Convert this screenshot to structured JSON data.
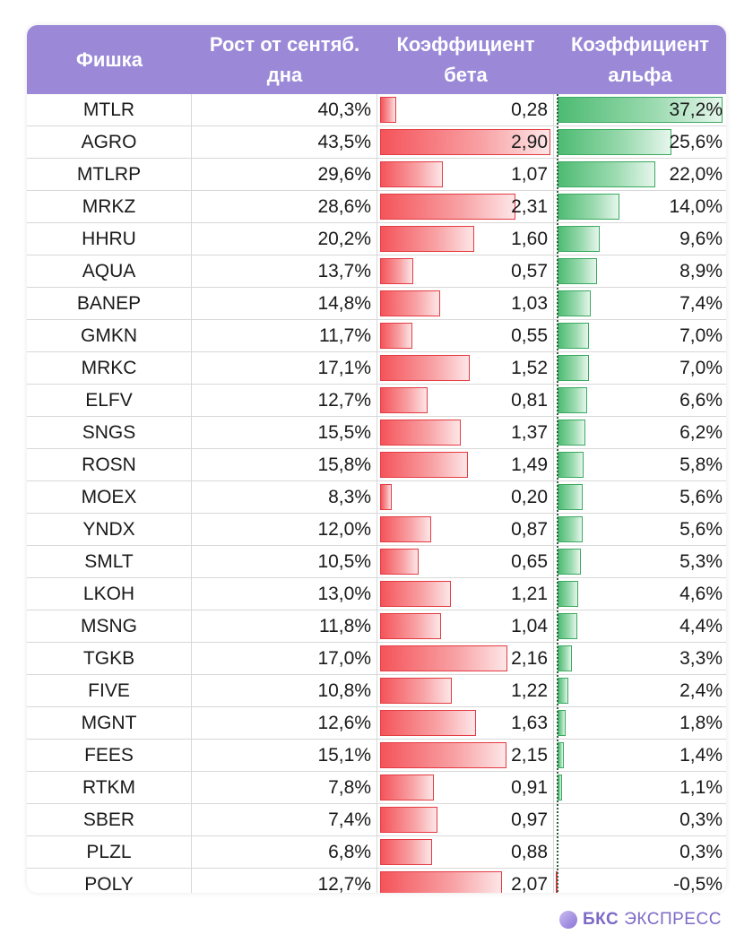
{
  "chart_data": {
    "type": "table",
    "columns": [
      "Фишка",
      "Рост от сентяб. дна",
      "Коэффициент бета",
      "Коэффициент альфа"
    ],
    "rows": [
      {
        "ticker": "MTLR",
        "growth": "40,3%",
        "beta": "0,28",
        "alpha": "37,2%",
        "beta_value": 0.28,
        "alpha_value": 37.2
      },
      {
        "ticker": "AGRO",
        "growth": "43,5%",
        "beta": "2,90",
        "alpha": "25,6%",
        "beta_value": 2.9,
        "alpha_value": 25.6
      },
      {
        "ticker": "MTLRP",
        "growth": "29,6%",
        "beta": "1,07",
        "alpha": "22,0%",
        "beta_value": 1.07,
        "alpha_value": 22.0
      },
      {
        "ticker": "MRKZ",
        "growth": "28,6%",
        "beta": "2,31",
        "alpha": "14,0%",
        "beta_value": 2.31,
        "alpha_value": 14.0
      },
      {
        "ticker": "HHRU",
        "growth": "20,2%",
        "beta": "1,60",
        "alpha": "9,6%",
        "beta_value": 1.6,
        "alpha_value": 9.6
      },
      {
        "ticker": "AQUA",
        "growth": "13,7%",
        "beta": "0,57",
        "alpha": "8,9%",
        "beta_value": 0.57,
        "alpha_value": 8.9
      },
      {
        "ticker": "BANEP",
        "growth": "14,8%",
        "beta": "1,03",
        "alpha": "7,4%",
        "beta_value": 1.03,
        "alpha_value": 7.4
      },
      {
        "ticker": "GMKN",
        "growth": "11,7%",
        "beta": "0,55",
        "alpha": "7,0%",
        "beta_value": 0.55,
        "alpha_value": 7.0
      },
      {
        "ticker": "MRKC",
        "growth": "17,1%",
        "beta": "1,52",
        "alpha": "7,0%",
        "beta_value": 1.52,
        "alpha_value": 7.0
      },
      {
        "ticker": "ELFV",
        "growth": "12,7%",
        "beta": "0,81",
        "alpha": "6,6%",
        "beta_value": 0.81,
        "alpha_value": 6.6
      },
      {
        "ticker": "SNGS",
        "growth": "15,5%",
        "beta": "1,37",
        "alpha": "6,2%",
        "beta_value": 1.37,
        "alpha_value": 6.2
      },
      {
        "ticker": "ROSN",
        "growth": "15,8%",
        "beta": "1,49",
        "alpha": "5,8%",
        "beta_value": 1.49,
        "alpha_value": 5.8
      },
      {
        "ticker": "MOEX",
        "growth": "8,3%",
        "beta": "0,20",
        "alpha": "5,6%",
        "beta_value": 0.2,
        "alpha_value": 5.6
      },
      {
        "ticker": "YNDX",
        "growth": "12,0%",
        "beta": "0,87",
        "alpha": "5,6%",
        "beta_value": 0.87,
        "alpha_value": 5.6
      },
      {
        "ticker": "SMLT",
        "growth": "10,5%",
        "beta": "0,65",
        "alpha": "5,3%",
        "beta_value": 0.65,
        "alpha_value": 5.3
      },
      {
        "ticker": "LKOH",
        "growth": "13,0%",
        "beta": "1,21",
        "alpha": "4,6%",
        "beta_value": 1.21,
        "alpha_value": 4.6
      },
      {
        "ticker": "MSNG",
        "growth": "11,8%",
        "beta": "1,04",
        "alpha": "4,4%",
        "beta_value": 1.04,
        "alpha_value": 4.4
      },
      {
        "ticker": "TGKB",
        "growth": "17,0%",
        "beta": "2,16",
        "alpha": "3,3%",
        "beta_value": 2.16,
        "alpha_value": 3.3
      },
      {
        "ticker": "FIVE",
        "growth": "10,8%",
        "beta": "1,22",
        "alpha": "2,4%",
        "beta_value": 1.22,
        "alpha_value": 2.4
      },
      {
        "ticker": "MGNT",
        "growth": "12,6%",
        "beta": "1,63",
        "alpha": "1,8%",
        "beta_value": 1.63,
        "alpha_value": 1.8
      },
      {
        "ticker": "FEES",
        "growth": "15,1%",
        "beta": "2,15",
        "alpha": "1,4%",
        "beta_value": 2.15,
        "alpha_value": 1.4
      },
      {
        "ticker": "RTKM",
        "growth": "7,8%",
        "beta": "0,91",
        "alpha": "1,1%",
        "beta_value": 0.91,
        "alpha_value": 1.1
      },
      {
        "ticker": "SBER",
        "growth": "7,4%",
        "beta": "0,97",
        "alpha": "0,3%",
        "beta_value": 0.97,
        "alpha_value": 0.3
      },
      {
        "ticker": "PLZL",
        "growth": "6,8%",
        "beta": "0,88",
        "alpha": "0,3%",
        "beta_value": 0.88,
        "alpha_value": 0.3
      },
      {
        "ticker": "POLY",
        "growth": "12,7%",
        "beta": "2,07",
        "alpha": "-0,5%",
        "beta_value": 2.07,
        "alpha_value": -0.5
      }
    ],
    "beta_max": 2.9,
    "alpha_max": 37.2
  },
  "header": {
    "col1": "Фишка",
    "col2_line1": "Рост от сентяб.",
    "col2_line2": "дна",
    "col3_line1": "Коэффициент",
    "col3_line2": "бета",
    "col4_line1": "Коэффициент",
    "col4_line2": "альфа"
  },
  "colors": {
    "header_bg": "#9b89d8",
    "beta_bar": "#f4545a",
    "alpha_bar": "#4dbb72",
    "negative_bar": "#e0373d"
  },
  "brand": {
    "name_bold": "БКС",
    "name_rest": "ЭКСПРЕСС",
    "logo_icon": "bks-logo-icon"
  }
}
